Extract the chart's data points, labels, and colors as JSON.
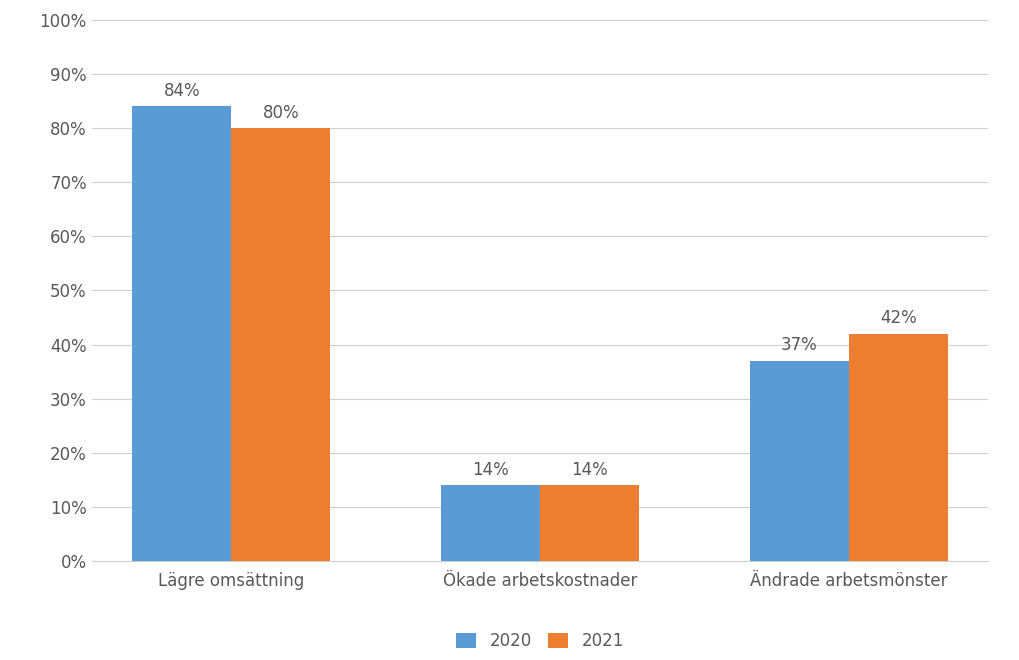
{
  "categories": [
    "Lägre omsättning",
    "Ökade arbetskostnader",
    "Ändrade arbetsmönster"
  ],
  "values_2020": [
    84,
    14,
    37
  ],
  "values_2021": [
    80,
    14,
    42
  ],
  "color_2020": "#5B9BD5",
  "color_2021": "#ED7D31",
  "legend_labels": [
    "2020",
    "2021"
  ],
  "ylim": [
    0,
    100
  ],
  "yticks": [
    0,
    10,
    20,
    30,
    40,
    50,
    60,
    70,
    80,
    90,
    100
  ],
  "background_color": "#ffffff",
  "grid_color": "#d0d0d0",
  "bar_width": 0.32,
  "tick_fontsize": 12,
  "legend_fontsize": 12,
  "annotation_fontsize": 12,
  "text_color": "#595959"
}
